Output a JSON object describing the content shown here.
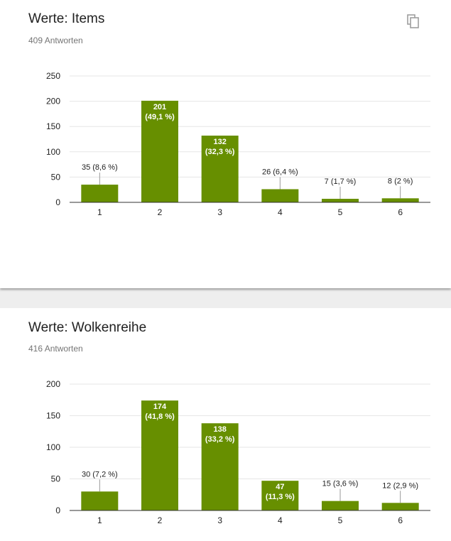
{
  "colors": {
    "bar": "#678f00",
    "grid": "#e6e6e6",
    "axis": "#333333",
    "text": "#222222"
  },
  "icons": {
    "copy": "copy-icon"
  },
  "cards": [
    {
      "title": "Werte: Items",
      "responses": "409 Antworten"
    },
    {
      "title": "Werte: Wolkenreihe",
      "responses": "416 Antworten"
    }
  ],
  "chart_data": [
    {
      "type": "bar",
      "title": "Werte: Items",
      "categories": [
        "1",
        "2",
        "3",
        "4",
        "5",
        "6"
      ],
      "values": [
        35,
        201,
        132,
        26,
        7,
        8
      ],
      "labels": [
        "35 (8,6 %)",
        "201\n(49,1 %)",
        "132\n(32,3 %)",
        "26 (6,4 %)",
        "7 (1,7 %)",
        "8 (2 %)"
      ],
      "ylim": [
        0,
        250
      ],
      "yticks": [
        "0",
        "50",
        "100",
        "150",
        "200",
        "250"
      ],
      "xlabel": "",
      "ylabel": "",
      "grid": true
    },
    {
      "type": "bar",
      "title": "Werte: Wolkenreihe",
      "categories": [
        "1",
        "2",
        "3",
        "4",
        "5",
        "6"
      ],
      "values": [
        30,
        174,
        138,
        47,
        15,
        12
      ],
      "labels": [
        "30 (7,2 %)",
        "174\n(41,8 %)",
        "138\n(33,2 %)",
        "47\n(11,3 %)",
        "15 (3,6 %)",
        "12 (2,9 %)"
      ],
      "ylim": [
        0,
        200
      ],
      "yticks": [
        "0",
        "50",
        "100",
        "150",
        "200"
      ],
      "xlabel": "",
      "ylabel": "",
      "grid": true
    }
  ]
}
